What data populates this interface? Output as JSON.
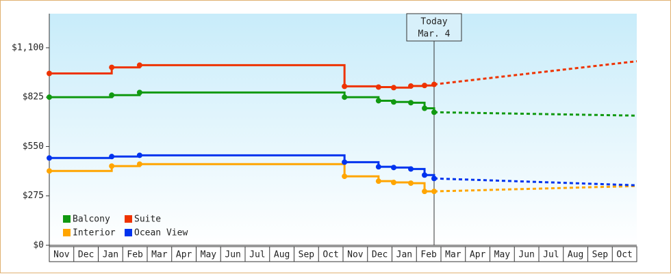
{
  "chart_data": {
    "type": "step-line",
    "months": [
      "Nov",
      "Dec",
      "Jan",
      "Feb",
      "Mar",
      "Apr",
      "May",
      "Jun",
      "Jul",
      "Aug",
      "Sep",
      "Oct",
      "Nov",
      "Dec",
      "Jan",
      "Feb",
      "Mar",
      "Apr",
      "May",
      "Jun",
      "Jul",
      "Aug",
      "Sep",
      "Oct"
    ],
    "xlim": [
      0,
      24
    ],
    "ylim": [
      0,
      1290
    ],
    "yticks": [
      {
        "value": 0,
        "label": "$0"
      },
      {
        "value": 275,
        "label": "$275"
      },
      {
        "value": 550,
        "label": "$550"
      },
      {
        "value": 825,
        "label": "$825"
      },
      {
        "value": 1100,
        "label": "$1,100"
      }
    ],
    "today": {
      "x": 15.72,
      "label": "Today",
      "date": "Mar. 4"
    },
    "x": [
      0,
      2.55,
      3.69,
      12.06,
      13.45,
      14.07,
      14.77,
      15.33,
      15.72
    ],
    "forecast_x": [
      15.72,
      24
    ],
    "series": [
      {
        "name": "Balcony",
        "color": "#119911",
        "values": [
          825,
          836,
          851,
          825,
          805,
          798,
          794,
          763,
          741
        ],
        "forecast": [
          741,
          722
        ]
      },
      {
        "name": "Suite",
        "color": "#ee3300",
        "values": [
          957,
          991,
          1003,
          885,
          881,
          878,
          887,
          890,
          896
        ],
        "forecast": [
          896,
          1025
        ]
      },
      {
        "name": "Interior",
        "color": "#ffa500",
        "values": [
          414,
          441,
          452,
          384,
          357,
          350,
          346,
          300,
          300
        ],
        "forecast": [
          300,
          330
        ]
      },
      {
        "name": "Ocean View",
        "color": "#0033ee",
        "values": [
          486,
          494,
          501,
          463,
          437,
          433,
          425,
          391,
          372
        ],
        "forecast": [
          372,
          334
        ]
      }
    ]
  }
}
